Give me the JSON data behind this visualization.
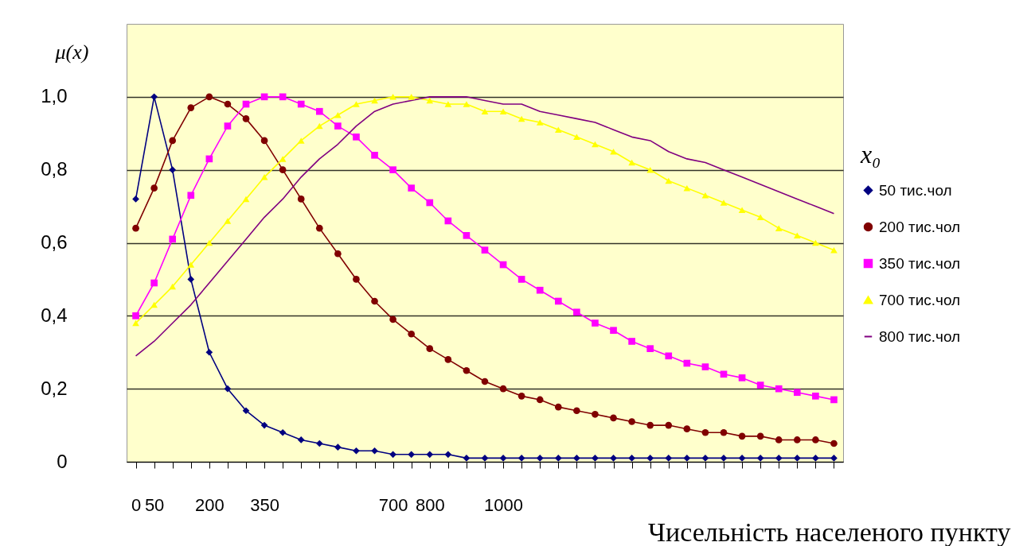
{
  "chart_data": {
    "type": "line",
    "xlabel": "Чисельність населеного пункту",
    "ylabel": "μ(x)",
    "legend_title": "x₀",
    "legend": "right",
    "grid": "y",
    "x": [
      0,
      50,
      100,
      150,
      200,
      250,
      300,
      350,
      400,
      450,
      500,
      550,
      600,
      650,
      700,
      750,
      800,
      850,
      900,
      950,
      1000,
      1050,
      1100,
      1150,
      1200,
      1250,
      1300,
      1350,
      1400,
      1450,
      1500,
      1550,
      1600,
      1650,
      1700,
      1750,
      1800,
      1850,
      1900
    ],
    "xlim": [
      -25,
      1925
    ],
    "xticks": [
      0,
      50,
      {
        "value": 100,
        "label": null
      },
      {
        "value": 150,
        "label": null
      },
      200,
      {
        "value": 250,
        "label": null
      },
      {
        "value": 300,
        "label": null
      },
      350,
      {
        "value": 400,
        "label": null
      },
      {
        "value": 450,
        "label": null
      },
      {
        "value": 500,
        "label": null
      },
      {
        "value": 550,
        "label": null
      },
      {
        "value": 600,
        "label": null
      },
      {
        "value": 650,
        "label": null
      },
      700,
      {
        "value": 750,
        "label": null
      },
      800,
      {
        "value": 850,
        "label": null
      },
      {
        "value": 900,
        "label": null
      },
      {
        "value": 950,
        "label": null
      },
      1000,
      {
        "value": 1050,
        "label": null
      },
      {
        "value": 1100,
        "label": null
      },
      {
        "value": 1150,
        "label": null
      },
      {
        "value": 1200,
        "label": null
      },
      {
        "value": 1250,
        "label": null
      },
      {
        "value": 1300,
        "label": null
      },
      {
        "value": 1350,
        "label": null
      },
      {
        "value": 1400,
        "label": null
      },
      {
        "value": 1450,
        "label": null
      },
      {
        "value": 1500,
        "label": null
      },
      {
        "value": 1550,
        "label": null
      },
      {
        "value": 1600,
        "label": null
      },
      {
        "value": 1650,
        "label": null
      },
      {
        "value": 1700,
        "label": null
      },
      {
        "value": 1750,
        "label": null
      },
      {
        "value": 1800,
        "label": null
      },
      {
        "value": 1850,
        "label": null
      },
      {
        "value": 1900,
        "label": null
      }
    ],
    "ylim": [
      0,
      1.2
    ],
    "yticks": [
      0,
      {
        "value": 0.2,
        "label": "0,2"
      },
      {
        "value": 0.4,
        "label": "0,4"
      },
      {
        "value": 0.6,
        "label": "0,6"
      },
      {
        "value": 0.8,
        "label": "0,8"
      },
      {
        "value": 1,
        "label": "1,0"
      }
    ],
    "series": [
      {
        "name": "50 тис.чол",
        "color": "#000080",
        "marker": "diamond",
        "values": [
          0.72,
          1,
          0.8,
          0.5,
          0.3,
          0.2,
          0.14,
          0.1,
          0.08,
          0.06,
          0.05,
          0.04,
          0.03,
          0.03,
          0.02,
          0.02,
          0.02,
          0.02,
          0.01,
          0.01,
          0.01,
          0.01,
          0.01,
          0.01,
          0.01,
          0.01,
          0.01,
          0.01,
          0.01,
          0.01,
          0.01,
          0.01,
          0.01,
          0.01,
          0.01,
          0.01,
          0.01,
          0.01,
          0.01
        ]
      },
      {
        "name": "200 тис.чол",
        "color": "#800000",
        "marker": "circle",
        "values": [
          0.64,
          0.75,
          0.88,
          0.97,
          1,
          0.98,
          0.94,
          0.88,
          0.8,
          0.72,
          0.64,
          0.57,
          0.5,
          0.44,
          0.39,
          0.35,
          0.31,
          0.28,
          0.25,
          0.22,
          0.2,
          0.18,
          0.17,
          0.15,
          0.14,
          0.13,
          0.12,
          0.11,
          0.1,
          0.1,
          0.09,
          0.08,
          0.08,
          0.07,
          0.07,
          0.06,
          0.06,
          0.06,
          0.05
        ]
      },
      {
        "name": "350 тис.чол",
        "color": "#ff00ff",
        "marker": "square",
        "values": [
          0.4,
          0.49,
          0.61,
          0.73,
          0.83,
          0.92,
          0.98,
          1,
          1,
          0.98,
          0.96,
          0.92,
          0.89,
          0.84,
          0.8,
          0.75,
          0.71,
          0.66,
          0.62,
          0.58,
          0.54,
          0.5,
          0.47,
          0.44,
          0.41,
          0.38,
          0.36,
          0.33,
          0.31,
          0.29,
          0.27,
          0.26,
          0.24,
          0.23,
          0.21,
          0.2,
          0.19,
          0.18,
          0.17
        ]
      },
      {
        "name": "700 тис.чол",
        "color": "#ffff00",
        "marker": "triangle",
        "values": [
          0.38,
          0.43,
          0.48,
          0.54,
          0.6,
          0.66,
          0.72,
          0.78,
          0.83,
          0.88,
          0.92,
          0.95,
          0.98,
          0.99,
          1,
          1,
          0.99,
          0.98,
          0.98,
          0.96,
          0.96,
          0.94,
          0.93,
          0.91,
          0.89,
          0.87,
          0.85,
          0.82,
          0.8,
          0.77,
          0.75,
          0.73,
          0.71,
          0.69,
          0.67,
          0.64,
          0.62,
          0.6,
          0.58
        ]
      },
      {
        "name": "800 тис.чол",
        "color": "#800080",
        "marker": "none",
        "values": [
          0.29,
          0.33,
          0.38,
          0.43,
          0.49,
          0.55,
          0.61,
          0.67,
          0.72,
          0.78,
          0.83,
          0.87,
          0.92,
          0.96,
          0.98,
          0.99,
          1,
          1,
          1,
          0.99,
          0.98,
          0.98,
          0.96,
          0.95,
          0.94,
          0.93,
          0.91,
          0.89,
          0.88,
          0.85,
          0.83,
          0.82,
          0.8,
          0.78,
          0.76,
          0.74,
          0.72,
          0.7,
          0.68
        ]
      }
    ]
  }
}
